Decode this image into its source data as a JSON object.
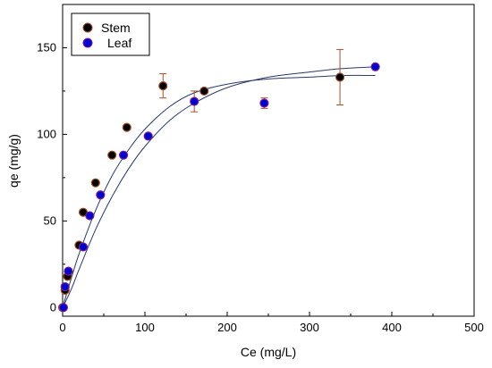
{
  "chart_data": {
    "type": "scatter",
    "xlabel": "Ce (mg/L)",
    "ylabel": "qe (mg/g)",
    "xlim": [
      0,
      500
    ],
    "ylim": [
      -5,
      175
    ],
    "xticks": [
      0,
      100,
      200,
      300,
      400,
      500
    ],
    "yticks": [
      0,
      50,
      100,
      150
    ],
    "x_tick_labels": [
      "0",
      "100",
      "200",
      "300",
      "400",
      "500"
    ],
    "y_tick_labels": [
      "0",
      "50",
      "100",
      "150"
    ],
    "grid": false,
    "legend_position": "top-left",
    "series": [
      {
        "name": "Stem",
        "color": "#000000",
        "marker_edge": "#a0522d",
        "x": [
          0,
          3,
          6,
          20,
          25,
          40,
          60,
          78,
          122,
          172,
          337
        ],
        "y": [
          0,
          10,
          18,
          36,
          55,
          72,
          88,
          104,
          128,
          125,
          133
        ],
        "error": [
          0,
          0,
          0,
          0,
          0,
          0,
          0,
          0,
          7,
          0,
          16
        ]
      },
      {
        "name": "Leaf",
        "color": "#0000cc",
        "marker_edge": "#7a1f8f",
        "x": [
          1,
          3,
          7,
          25,
          33,
          46,
          74,
          104,
          160,
          245,
          380
        ],
        "y": [
          0,
          12,
          21,
          35,
          53,
          65,
          88,
          99,
          119,
          118,
          139
        ],
        "error": [
          0,
          0,
          0,
          0,
          0,
          0,
          0,
          0,
          6,
          3,
          0
        ]
      }
    ],
    "fit_curves": [
      {
        "color": "#2b3a67",
        "x": [
          0,
          10,
          20,
          40,
          60,
          80,
          100,
          130,
          160,
          200,
          250,
          300,
          340,
          380
        ],
        "y": [
          0,
          16,
          31,
          56,
          76,
          91,
          103,
          116,
          124,
          129,
          132,
          133,
          134,
          134
        ]
      },
      {
        "color": "#2b3a67",
        "x": [
          0,
          10,
          20,
          40,
          60,
          80,
          100,
          130,
          160,
          200,
          250,
          300,
          340,
          380
        ],
        "y": [
          0,
          10,
          22,
          45,
          64,
          80,
          93,
          108,
          118,
          127,
          133,
          136,
          138,
          139
        ]
      }
    ]
  }
}
